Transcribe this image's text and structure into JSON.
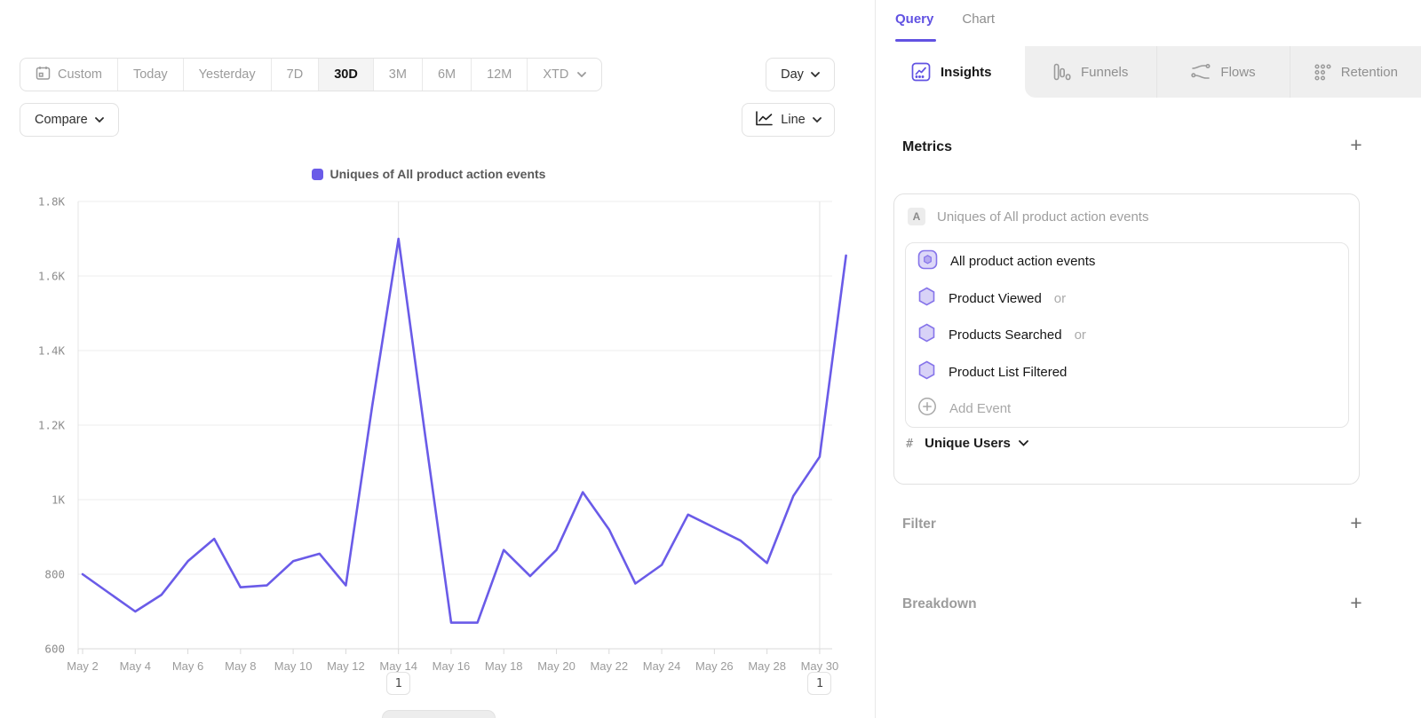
{
  "toolbar": {
    "ranges": [
      "Custom",
      "Today",
      "Yesterday",
      "7D",
      "30D",
      "3M",
      "6M",
      "12M",
      "XTD"
    ],
    "selected_range": "30D",
    "granularity_label": "Day",
    "chart_type_label": "Line",
    "compare_label": "Compare"
  },
  "legend": {
    "label": "Uniques of All product action events",
    "color": "#6a5be8"
  },
  "chart_data": {
    "type": "line",
    "title": "Uniques of All product action events",
    "x": [
      "May 2",
      "May 3",
      "May 4",
      "May 5",
      "May 6",
      "May 7",
      "May 8",
      "May 9",
      "May 10",
      "May 11",
      "May 12",
      "May 13",
      "May 14",
      "May 15",
      "May 16",
      "May 17",
      "May 18",
      "May 19",
      "May 20",
      "May 21",
      "May 22",
      "May 23",
      "May 24",
      "May 25",
      "May 26",
      "May 27",
      "May 28",
      "May 29",
      "May 30",
      "May 31"
    ],
    "series": [
      {
        "name": "Uniques of All product action events",
        "color": "#6a5be8",
        "values": [
          800,
          750,
          700,
          745,
          835,
          895,
          765,
          770,
          835,
          855,
          770,
          1250,
          1700,
          1180,
          670,
          670,
          865,
          795,
          865,
          1020,
          920,
          775,
          825,
          960,
          925,
          890,
          830,
          1010,
          1115,
          1655
        ]
      }
    ],
    "x_tick_labels": [
      "May 2",
      "May 4",
      "May 6",
      "May 8",
      "May 10",
      "May 12",
      "May 14",
      "May 16",
      "May 18",
      "May 20",
      "May 22",
      "May 24",
      "May 26",
      "May 28",
      "May 30"
    ],
    "y_ticks": [
      {
        "value": 600,
        "label": "600"
      },
      {
        "value": 800,
        "label": "800"
      },
      {
        "value": 1000,
        "label": "1K"
      },
      {
        "value": 1200,
        "label": "1.2K"
      },
      {
        "value": 1400,
        "label": "1.4K"
      },
      {
        "value": 1600,
        "label": "1.6K"
      },
      {
        "value": 1800,
        "label": "1.8K"
      }
    ],
    "ylim": [
      600,
      1800
    ],
    "grid": true,
    "legend_position": "top-center",
    "annotations": [
      {
        "x_label": "May 14",
        "label": "1"
      },
      {
        "x_label": "May 30",
        "label": "1"
      }
    ]
  },
  "query_panel": {
    "view_tabs": {
      "query": "Query",
      "chart": "Chart"
    },
    "report_tabs": [
      {
        "label": "Insights"
      },
      {
        "label": "Funnels"
      },
      {
        "label": "Flows"
      },
      {
        "label": "Retention"
      }
    ],
    "active_report_tab": "Insights",
    "metrics": {
      "heading": "Metrics",
      "add_label": "+",
      "group_badge": "A",
      "group_label": "Uniques of All product action events",
      "events": [
        {
          "name": "All product action events",
          "suffix": ""
        },
        {
          "name": "Product Viewed",
          "suffix": "or"
        },
        {
          "name": "Products Searched",
          "suffix": "or"
        },
        {
          "name": "Product List Filtered",
          "suffix": ""
        }
      ],
      "add_event_label": "Add Event",
      "measurement": {
        "prefix": "#",
        "label": "Unique Users"
      }
    },
    "filter": {
      "heading": "Filter",
      "add_label": "+"
    },
    "breakdown": {
      "heading": "Breakdown",
      "add_label": "+"
    }
  },
  "colors": {
    "accent_purple": "#6152e2",
    "line_purple": "#6a5be8",
    "hex_icon_stroke": "#8674ea",
    "hex_icon_fill": "#d8d2f7"
  }
}
